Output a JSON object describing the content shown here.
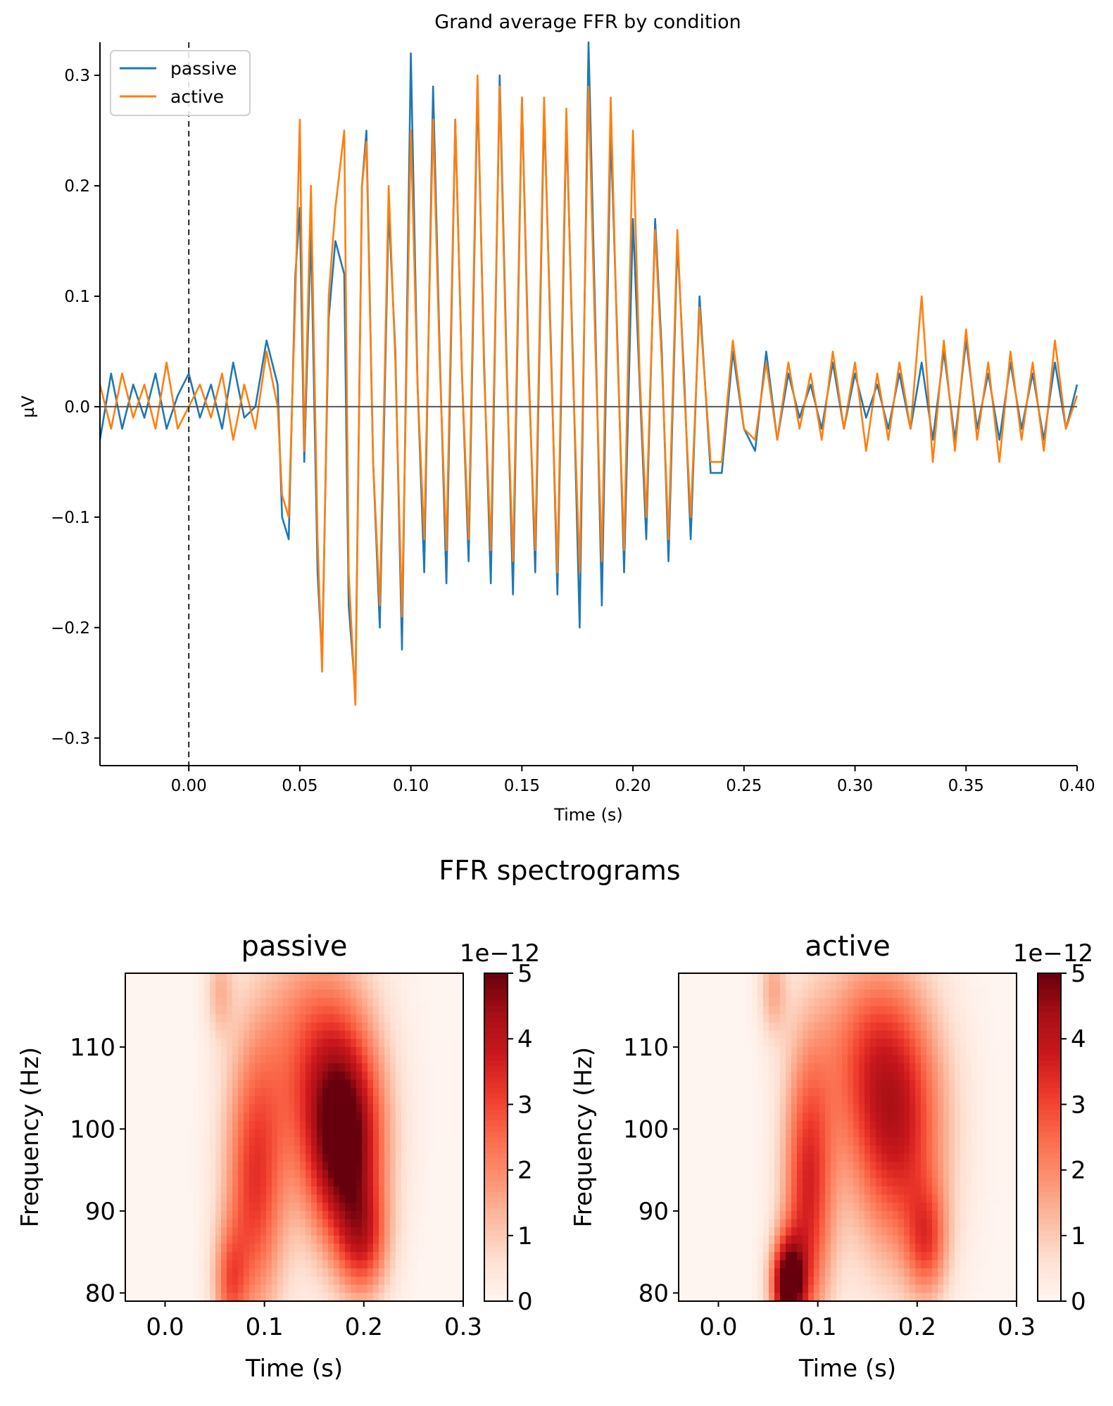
{
  "chart_data": [
    {
      "type": "line",
      "title": "Grand average FFR by condition",
      "xlabel": "Time (s)",
      "ylabel": "µV",
      "xlim": [
        -0.04,
        0.4
      ],
      "ylim": [
        -0.325,
        0.33
      ],
      "xticks": [
        "0.00",
        "0.05",
        "0.10",
        "0.15",
        "0.20",
        "0.25",
        "0.30",
        "0.35",
        "0.40"
      ],
      "yticks": [
        "−0.3",
        "−0.2",
        "−0.1",
        "0.0",
        "0.1",
        "0.2",
        "0.3"
      ],
      "legend_position": "upper-left",
      "annotations": {
        "vline_x": 0.0,
        "vline_style": "dashed",
        "hline_y": 0.0
      },
      "series": [
        {
          "name": "passive",
          "color": "#1f77b4",
          "x": [
            -0.04,
            -0.035,
            -0.03,
            -0.025,
            -0.02,
            -0.015,
            -0.01,
            -0.005,
            0.0,
            0.005,
            0.01,
            0.015,
            0.02,
            0.025,
            0.03,
            0.035,
            0.04,
            0.042,
            0.045,
            0.048,
            0.05,
            0.052,
            0.055,
            0.058,
            0.06,
            0.063,
            0.066,
            0.07,
            0.072,
            0.075,
            0.078,
            0.08,
            0.083,
            0.086,
            0.09,
            0.093,
            0.096,
            0.1,
            0.103,
            0.106,
            0.11,
            0.113,
            0.116,
            0.12,
            0.123,
            0.126,
            0.13,
            0.133,
            0.136,
            0.14,
            0.143,
            0.146,
            0.15,
            0.153,
            0.156,
            0.16,
            0.163,
            0.166,
            0.17,
            0.173,
            0.176,
            0.18,
            0.183,
            0.186,
            0.19,
            0.193,
            0.196,
            0.2,
            0.203,
            0.206,
            0.21,
            0.213,
            0.216,
            0.22,
            0.223,
            0.226,
            0.23,
            0.235,
            0.24,
            0.245,
            0.25,
            0.255,
            0.26,
            0.265,
            0.27,
            0.275,
            0.28,
            0.285,
            0.29,
            0.295,
            0.3,
            0.305,
            0.31,
            0.315,
            0.32,
            0.325,
            0.33,
            0.335,
            0.34,
            0.345,
            0.35,
            0.355,
            0.36,
            0.365,
            0.37,
            0.375,
            0.38,
            0.385,
            0.39,
            0.395,
            0.4
          ],
          "y": [
            -0.03,
            0.03,
            -0.02,
            0.02,
            -0.01,
            0.03,
            -0.02,
            0.01,
            0.03,
            -0.01,
            0.02,
            -0.02,
            0.04,
            -0.01,
            0.0,
            0.06,
            0.02,
            -0.1,
            -0.12,
            0.12,
            0.18,
            -0.05,
            0.16,
            -0.15,
            -0.23,
            0.08,
            0.15,
            0.12,
            -0.18,
            -0.26,
            0.2,
            0.25,
            -0.05,
            -0.2,
            0.18,
            0.05,
            -0.22,
            0.32,
            0.02,
            -0.15,
            0.29,
            0.05,
            -0.16,
            0.26,
            0.03,
            -0.14,
            0.29,
            0.04,
            -0.16,
            0.3,
            0.05,
            -0.17,
            0.28,
            0.04,
            -0.15,
            0.27,
            0.06,
            -0.17,
            0.26,
            0.04,
            -0.2,
            0.33,
            0.08,
            -0.18,
            0.25,
            0.06,
            -0.15,
            0.17,
            0.02,
            -0.12,
            0.17,
            0.05,
            -0.14,
            0.15,
            0.03,
            -0.12,
            0.1,
            -0.06,
            -0.06,
            0.05,
            -0.02,
            -0.04,
            0.05,
            -0.03,
            0.03,
            -0.01,
            0.02,
            -0.02,
            0.04,
            -0.02,
            0.03,
            -0.01,
            0.02,
            -0.02,
            0.03,
            -0.02,
            0.04,
            -0.03,
            0.05,
            -0.03,
            0.06,
            -0.02,
            0.03,
            -0.03,
            0.04,
            -0.02,
            0.03,
            -0.03,
            0.04,
            -0.02,
            0.02
          ]
        },
        {
          "name": "active",
          "color": "#ff7f0e",
          "x": [
            -0.04,
            -0.035,
            -0.03,
            -0.025,
            -0.02,
            -0.015,
            -0.01,
            -0.005,
            0.0,
            0.005,
            0.01,
            0.015,
            0.02,
            0.025,
            0.03,
            0.035,
            0.04,
            0.042,
            0.045,
            0.048,
            0.05,
            0.052,
            0.055,
            0.058,
            0.06,
            0.063,
            0.066,
            0.07,
            0.072,
            0.075,
            0.078,
            0.08,
            0.083,
            0.086,
            0.09,
            0.093,
            0.096,
            0.1,
            0.103,
            0.106,
            0.11,
            0.113,
            0.116,
            0.12,
            0.123,
            0.126,
            0.13,
            0.133,
            0.136,
            0.14,
            0.143,
            0.146,
            0.15,
            0.153,
            0.156,
            0.16,
            0.163,
            0.166,
            0.17,
            0.173,
            0.176,
            0.18,
            0.183,
            0.186,
            0.19,
            0.193,
            0.196,
            0.2,
            0.203,
            0.206,
            0.21,
            0.213,
            0.216,
            0.22,
            0.223,
            0.226,
            0.23,
            0.235,
            0.24,
            0.245,
            0.25,
            0.255,
            0.26,
            0.265,
            0.27,
            0.275,
            0.28,
            0.285,
            0.29,
            0.295,
            0.3,
            0.305,
            0.31,
            0.315,
            0.32,
            0.325,
            0.33,
            0.335,
            0.34,
            0.345,
            0.35,
            0.355,
            0.36,
            0.365,
            0.37,
            0.375,
            0.38,
            0.385,
            0.39,
            0.395,
            0.4
          ],
          "y": [
            0.02,
            -0.02,
            0.03,
            -0.01,
            0.02,
            -0.02,
            0.04,
            -0.02,
            0.0,
            0.02,
            -0.01,
            0.03,
            -0.03,
            0.02,
            -0.02,
            0.05,
            0.0,
            -0.08,
            -0.1,
            0.1,
            0.26,
            -0.04,
            0.2,
            -0.12,
            -0.24,
            0.1,
            0.18,
            0.25,
            -0.15,
            -0.27,
            0.2,
            0.24,
            -0.05,
            -0.18,
            0.2,
            0.04,
            -0.19,
            0.25,
            0.02,
            -0.12,
            0.26,
            0.04,
            -0.13,
            0.26,
            0.03,
            -0.12,
            0.3,
            0.03,
            -0.13,
            0.29,
            0.04,
            -0.14,
            0.28,
            0.03,
            -0.13,
            0.28,
            0.05,
            -0.15,
            0.27,
            0.03,
            -0.15,
            0.29,
            0.06,
            -0.14,
            0.28,
            0.05,
            -0.13,
            0.25,
            0.03,
            -0.1,
            0.16,
            0.04,
            -0.12,
            0.16,
            0.02,
            -0.1,
            0.09,
            -0.05,
            -0.05,
            0.06,
            -0.02,
            -0.03,
            0.04,
            -0.03,
            0.04,
            -0.02,
            0.03,
            -0.03,
            0.05,
            -0.02,
            0.04,
            -0.04,
            0.03,
            -0.03,
            0.04,
            -0.02,
            0.1,
            -0.05,
            0.06,
            -0.04,
            0.07,
            -0.03,
            0.04,
            -0.05,
            0.05,
            -0.03,
            0.04,
            -0.04,
            0.06,
            -0.02,
            0.01
          ]
        }
      ]
    },
    {
      "type": "heatmap",
      "suptitle": "FFR spectrograms",
      "title": "passive",
      "xlabel": "Time (s)",
      "ylabel": "Frequency (Hz)",
      "xlim": [
        -0.04,
        0.3
      ],
      "ylim": [
        79,
        119
      ],
      "xticks": [
        "0.0",
        "0.1",
        "0.2",
        "0.3"
      ],
      "yticks": [
        "80",
        "90",
        "100",
        "110"
      ],
      "colormap": "Reds",
      "colorbar": {
        "min": 0,
        "max": 5,
        "ticks": [
          "0",
          "1",
          "2",
          "3",
          "4",
          "5"
        ],
        "scale_label": "1e−12"
      },
      "blobs": [
        {
          "t": 0.09,
          "f": 93,
          "st": 0.022,
          "sf": 12,
          "amp": 3.1
        },
        {
          "t": 0.18,
          "f": 98,
          "st": 0.028,
          "sf": 9,
          "amp": 5.0
        },
        {
          "t": 0.15,
          "f": 110,
          "st": 0.04,
          "sf": 10,
          "amp": 2.3
        },
        {
          "t": 0.2,
          "f": 86,
          "st": 0.018,
          "sf": 5,
          "amp": 2.4
        },
        {
          "t": 0.065,
          "f": 81,
          "st": 0.012,
          "sf": 5,
          "amp": 2.0
        },
        {
          "t": 0.055,
          "f": 117,
          "st": 0.01,
          "sf": 4,
          "amp": 1.2
        }
      ]
    },
    {
      "type": "heatmap",
      "title": "active",
      "xlabel": "Time (s)",
      "ylabel": "Frequency (Hz)",
      "xlim": [
        -0.04,
        0.3
      ],
      "ylim": [
        79,
        119
      ],
      "xticks": [
        "0.0",
        "0.1",
        "0.2",
        "0.3"
      ],
      "yticks": [
        "80",
        "90",
        "100",
        "110"
      ],
      "colormap": "Reds",
      "colorbar": {
        "min": 0,
        "max": 5,
        "ticks": [
          "0",
          "1",
          "2",
          "3",
          "4",
          "5"
        ],
        "scale_label": "1e−12"
      },
      "blobs": [
        {
          "t": 0.07,
          "f": 81,
          "st": 0.012,
          "sf": 4,
          "amp": 5.0
        },
        {
          "t": 0.09,
          "f": 92,
          "st": 0.018,
          "sf": 12,
          "amp": 3.4
        },
        {
          "t": 0.18,
          "f": 99,
          "st": 0.035,
          "sf": 11,
          "amp": 3.3
        },
        {
          "t": 0.15,
          "f": 110,
          "st": 0.04,
          "sf": 9,
          "amp": 2.0
        },
        {
          "t": 0.21,
          "f": 86,
          "st": 0.015,
          "sf": 5,
          "amp": 2.2
        },
        {
          "t": 0.055,
          "f": 117,
          "st": 0.01,
          "sf": 4,
          "amp": 1.4
        }
      ]
    }
  ]
}
